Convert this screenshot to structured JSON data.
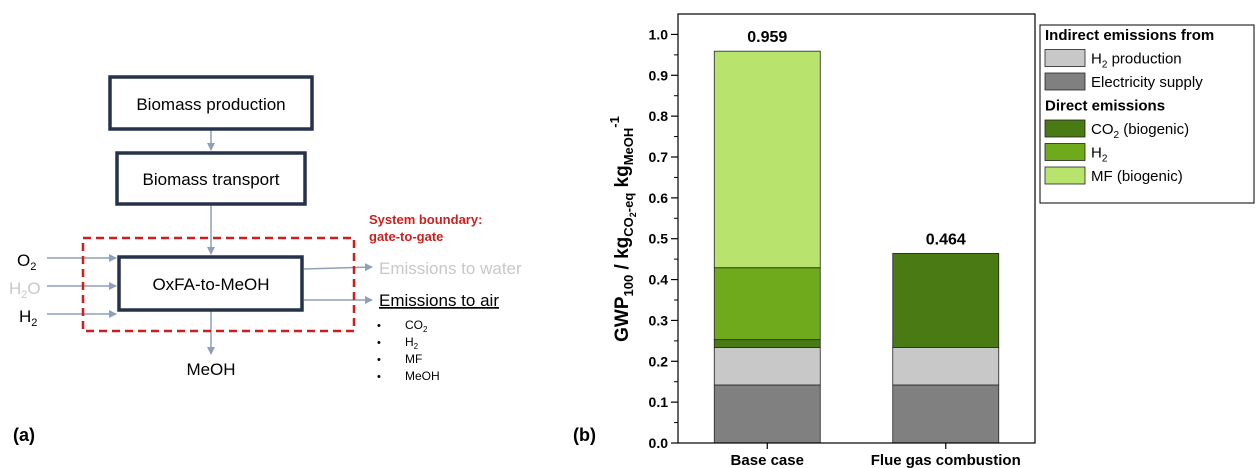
{
  "colors": {
    "h2_production": "#c8c8c8",
    "electricity_supply": "#808080",
    "co2_biogenic": "#4a7a14",
    "h2_direct": "#6faa1c",
    "mf_biogenic": "#b8e46e",
    "box_border": "#26324a",
    "arrow": "#8fa0b8",
    "boundary": "#cc1f1f",
    "muted_text": "#c8c8c8"
  },
  "panel_a": {
    "label": "(a)",
    "box_biomass_production": "Biomass production",
    "box_biomass_transport": "Biomass transport",
    "box_process": "OxFA-to-MeOH",
    "boundary_line1": "System boundary:",
    "boundary_line2": "gate-to-gate",
    "inputs": [
      {
        "main": "O",
        "sub": "2",
        "muted": false
      },
      {
        "main": "H",
        "sub": "2",
        "tail": "O",
        "muted": true
      },
      {
        "main": "H",
        "sub": "2",
        "muted": false
      }
    ],
    "output_product": "MeOH",
    "emissions_water": "Emissions to water",
    "emissions_air": "Emissions to air",
    "air_species": [
      {
        "main": "CO",
        "sub": "2"
      },
      {
        "main": "H",
        "sub": "2"
      },
      {
        "main": "MF",
        "sub": ""
      },
      {
        "main": "MeOH",
        "sub": ""
      }
    ]
  },
  "panel_b": {
    "label": "(b)"
  },
  "chart_data": {
    "type": "bar",
    "stacked": true,
    "categories": [
      "Base case",
      "Flue gas combustion"
    ],
    "totals": [
      "0.959",
      "0.464"
    ],
    "ylabel": {
      "main": "GWP",
      "main_sub": "100",
      "mid": " / kg",
      "mid_sub": "CO",
      "mid_sub_sub": "2",
      "mid_sub_tail": "-eq",
      "end": " kg",
      "end_sub": "MeOH",
      "end_sup": "-1"
    },
    "ylim": [
      0,
      1.05
    ],
    "yticks": [
      "0.0",
      "0.1",
      "0.2",
      "0.3",
      "0.4",
      "0.5",
      "0.6",
      "0.7",
      "0.8",
      "0.9",
      "1.0"
    ],
    "series": [
      {
        "key": "electricity_supply",
        "values": [
          0.142,
          0.142
        ]
      },
      {
        "key": "h2_production",
        "values": [
          0.092,
          0.092
        ]
      },
      {
        "key": "co2_biogenic",
        "values": [
          0.019,
          0.23
        ]
      },
      {
        "key": "h2_direct",
        "values": [
          0.176,
          0.0
        ]
      },
      {
        "key": "mf_biogenic",
        "values": [
          0.53,
          0.0
        ]
      }
    ],
    "legend": {
      "placement": "right",
      "heading_indirect": "Indirect emissions from",
      "heading_direct": "Direct emissions",
      "entries": [
        {
          "key": "h2_production",
          "main": "H",
          "sub": "2",
          "tail": " production",
          "group": "indirect"
        },
        {
          "key": "electricity_supply",
          "main": "Electricity supply",
          "sub": "",
          "tail": "",
          "group": "indirect"
        },
        {
          "key": "co2_biogenic",
          "main": "CO",
          "sub": "2",
          "tail": " (biogenic)",
          "group": "direct"
        },
        {
          "key": "h2_direct",
          "main": "H",
          "sub": "2",
          "tail": "",
          "group": "direct"
        },
        {
          "key": "mf_biogenic",
          "main": "MF (biogenic)",
          "sub": "",
          "tail": "",
          "group": "direct"
        }
      ]
    }
  }
}
